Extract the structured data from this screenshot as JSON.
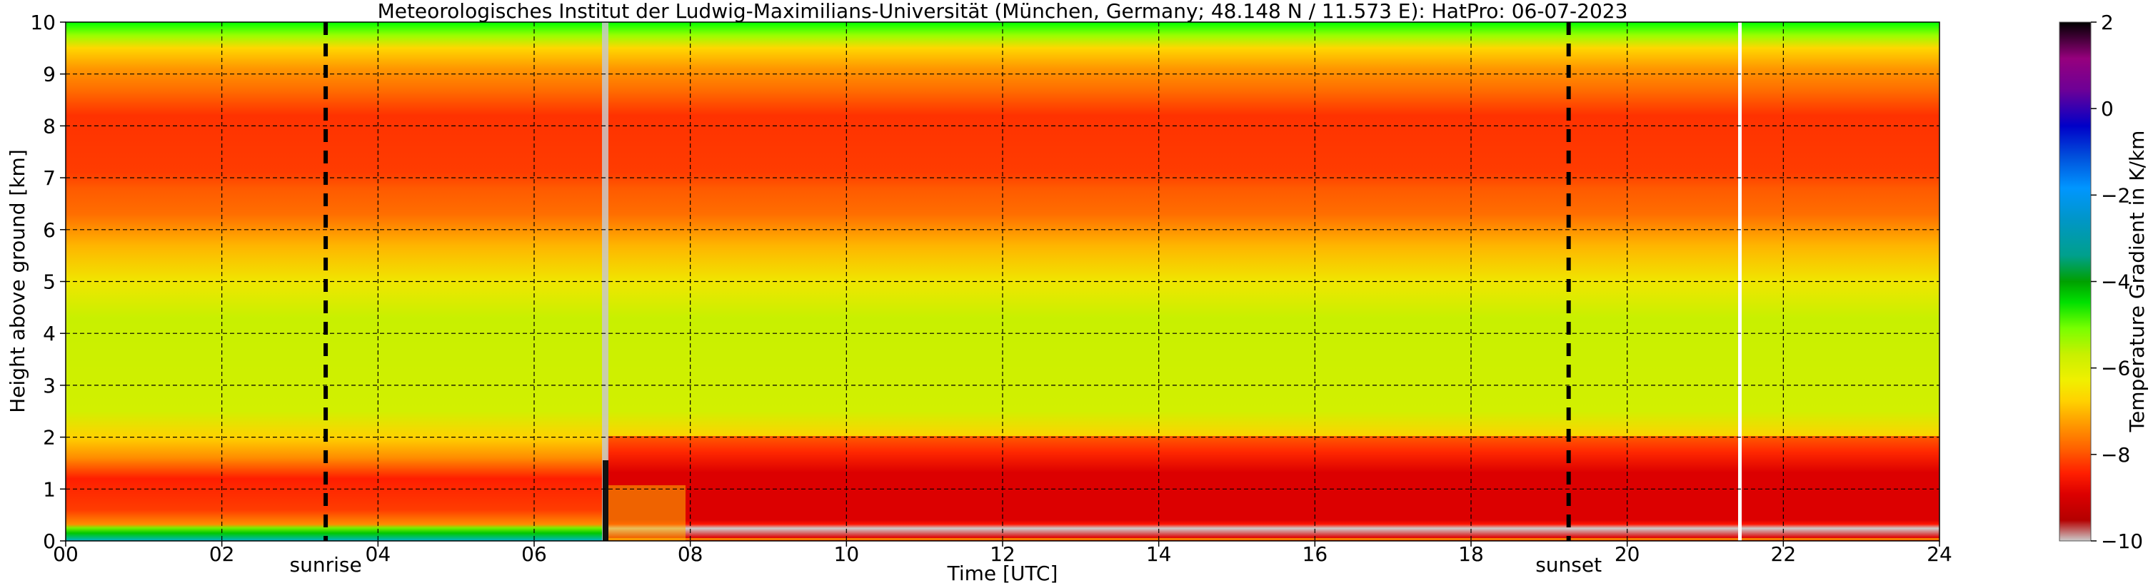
{
  "chart_data": {
    "type": "heatmap",
    "title": "Meteorologisches Institut der Ludwig-Maximilians-Universität (München, Germany; 48.148 N / 11.573 E):    HatPro: 06-07-2023",
    "xlabel": "Time [UTC]",
    "ylabel": "Height above ground [km]",
    "xlim": [
      0,
      24
    ],
    "ylim": [
      0,
      10
    ],
    "x_ticks": [
      0,
      2,
      4,
      6,
      8,
      10,
      12,
      14,
      16,
      18,
      20,
      22,
      24
    ],
    "x_tick_labels": [
      "00",
      "02",
      "04",
      "06",
      "08",
      "10",
      "12",
      "14",
      "16",
      "18",
      "20",
      "22",
      "24"
    ],
    "y_ticks": [
      0,
      1,
      2,
      3,
      4,
      5,
      6,
      7,
      8,
      9,
      10
    ],
    "y_tick_labels": [
      "0",
      "1",
      "2",
      "3",
      "4",
      "5",
      "6",
      "7",
      "8",
      "9",
      "10"
    ],
    "grid": true,
    "colorbar": {
      "label": "Temperature Gradient in K/km",
      "range": [
        -10,
        2
      ],
      "ticks": [
        2,
        0,
        -2,
        -4,
        -6,
        -8,
        -10
      ],
      "tick_labels": [
        "2",
        "0",
        "−2",
        "−4",
        "−6",
        "−8",
        "−10"
      ],
      "colors": [
        "#cccccc",
        "#b40000",
        "#e00000",
        "#ff1e00",
        "#ff5a00",
        "#ff8c00",
        "#ffb400",
        "#ffd700",
        "#ffff00",
        "#c8f000",
        "#78ff00",
        "#00e000",
        "#00a000",
        "#00a08c",
        "#0096c8",
        "#0096ff",
        "#0050dc",
        "#0000c8",
        "#6e0096",
        "#96007d",
        "#000000"
      ]
    },
    "annotations": [
      {
        "label": "sunrise",
        "x": 3.33
      },
      {
        "label": "sunset",
        "x": 19.25
      }
    ],
    "data_gaps": [
      {
        "x": 6.92,
        "note": "vertical data gap line"
      },
      {
        "x": 21.5,
        "note": "white data gap line"
      }
    ],
    "layers": [
      {
        "height_range": [
          0.0,
          0.3
        ],
        "value_00_07": -4.5,
        "value_07_24": -9.5
      },
      {
        "height_range": [
          0.3,
          1.5
        ],
        "value_00_07": -7.5,
        "value_07_24": -8.8
      },
      {
        "height_range": [
          1.5,
          2.0
        ],
        "value_00_07": -7.0,
        "value_07_24": -8.4
      },
      {
        "height_range": [
          2.0,
          4.5
        ],
        "value_00_24": -6.2
      },
      {
        "height_range": [
          4.5,
          6.0
        ],
        "value_00_24": -6.8
      },
      {
        "height_range": [
          6.0,
          7.0
        ],
        "value_00_24": -7.6
      },
      {
        "height_range": [
          7.0,
          8.5
        ],
        "value_00_24": -8.0
      },
      {
        "height_range": [
          8.5,
          9.5
        ],
        "value_00_24": -7.5
      },
      {
        "height_range": [
          9.5,
          10.0
        ],
        "value_00_24": -5.5
      }
    ]
  }
}
